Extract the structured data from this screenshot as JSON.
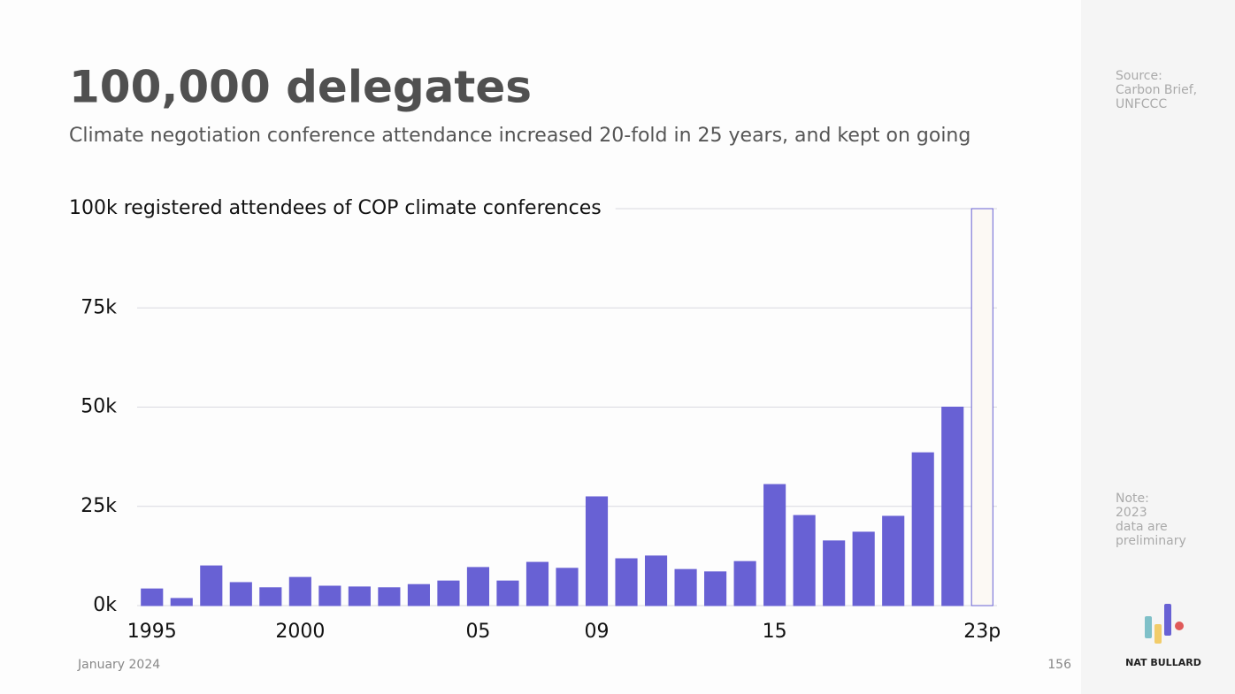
{
  "chart_data": {
    "type": "bar",
    "title": "100,000 delegates",
    "subtitle": "Climate negotiation conference attendance increased 20-fold in 25 years, and kept on going",
    "categories": [
      "1995",
      null,
      null,
      null,
      null,
      "2000",
      null,
      null,
      null,
      null,
      null,
      "05",
      null,
      null,
      null,
      "09",
      null,
      null,
      null,
      null,
      null,
      "15",
      null,
      null,
      null,
      null,
      null,
      null,
      "23p"
    ],
    "values": [
      4.2,
      1.8,
      10.0,
      5.8,
      4.5,
      7.1,
      4.9,
      4.7,
      4.5,
      5.3,
      6.2,
      9.6,
      6.2,
      10.9,
      9.4,
      27.4,
      11.8,
      12.5,
      9.1,
      8.5,
      11.1,
      30.5,
      22.7,
      16.3,
      18.5,
      22.5,
      38.5,
      50,
      100
    ],
    "colors": [
      "#6861d4",
      "#6861d4",
      "#6861d4",
      "#6861d4",
      "#6861d4",
      "#6861d4",
      "#6861d4",
      "#6861d4",
      "#6861d4",
      "#6861d4",
      "#6861d4",
      "#6861d4",
      "#6861d4",
      "#6861d4",
      "#6861d4",
      "#6861d4",
      "#6861d4",
      "#6861d4",
      "#6861d4",
      "#6861d4",
      "#6861d4",
      "#6861d4",
      "#6861d4",
      "#6861d4",
      "#6861d4",
      "#6861d4",
      "#6861d4",
      "#6861d4",
      "#fcf9f4"
    ],
    "edgecolor": "#6861d4",
    "ylim": [
      0,
      100
    ],
    "yticks": [
      {
        "value": 0,
        "label": "0k"
      },
      {
        "value": 25,
        "label": "25k"
      },
      {
        "value": 50,
        "label": "50k"
      },
      {
        "value": 75,
        "label": "75k"
      },
      {
        "value": 100,
        "label": "100k registered attendees of COP climate conferences"
      }
    ],
    "grid": true
  },
  "footer": {
    "date": "January 2024",
    "page": 156
  },
  "sidebar": {
    "source": [
      "Source:",
      "Carbon Brief,",
      "UNFCCC"
    ],
    "note": [
      "Note:",
      "2023",
      "data are",
      "preliminary"
    ],
    "brand": "NAT BULLARD"
  }
}
